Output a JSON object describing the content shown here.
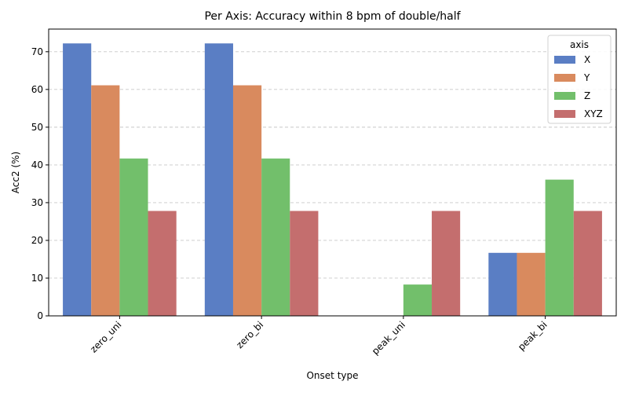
{
  "chart_data": {
    "type": "bar",
    "title": "Per Axis: Accuracy within 8 bpm of double/half",
    "xlabel": "Onset type",
    "ylabel": "Acc2 (%)",
    "categories": [
      "zero_uni",
      "zero_bi",
      "peak_uni",
      "peak_bi"
    ],
    "series": [
      {
        "name": "X",
        "color": "#5A7EC4",
        "values": [
          72.2,
          72.2,
          0,
          16.7
        ]
      },
      {
        "name": "Y",
        "color": "#D98A5E",
        "values": [
          61.1,
          61.1,
          0,
          16.7
        ]
      },
      {
        "name": "Z",
        "color": "#72BF6B",
        "values": [
          41.7,
          41.7,
          8.3,
          36.1
        ]
      },
      {
        "name": "XYZ",
        "color": "#C46E6E",
        "values": [
          27.8,
          27.8,
          27.8,
          27.8
        ]
      }
    ],
    "ylim": [
      0,
      76
    ],
    "yticks": [
      0,
      10,
      20,
      30,
      40,
      50,
      60,
      70
    ],
    "grid": "y-dashed",
    "legend": {
      "title": "axis",
      "placement": "top-right"
    },
    "xtick_rotation_deg": 45
  }
}
